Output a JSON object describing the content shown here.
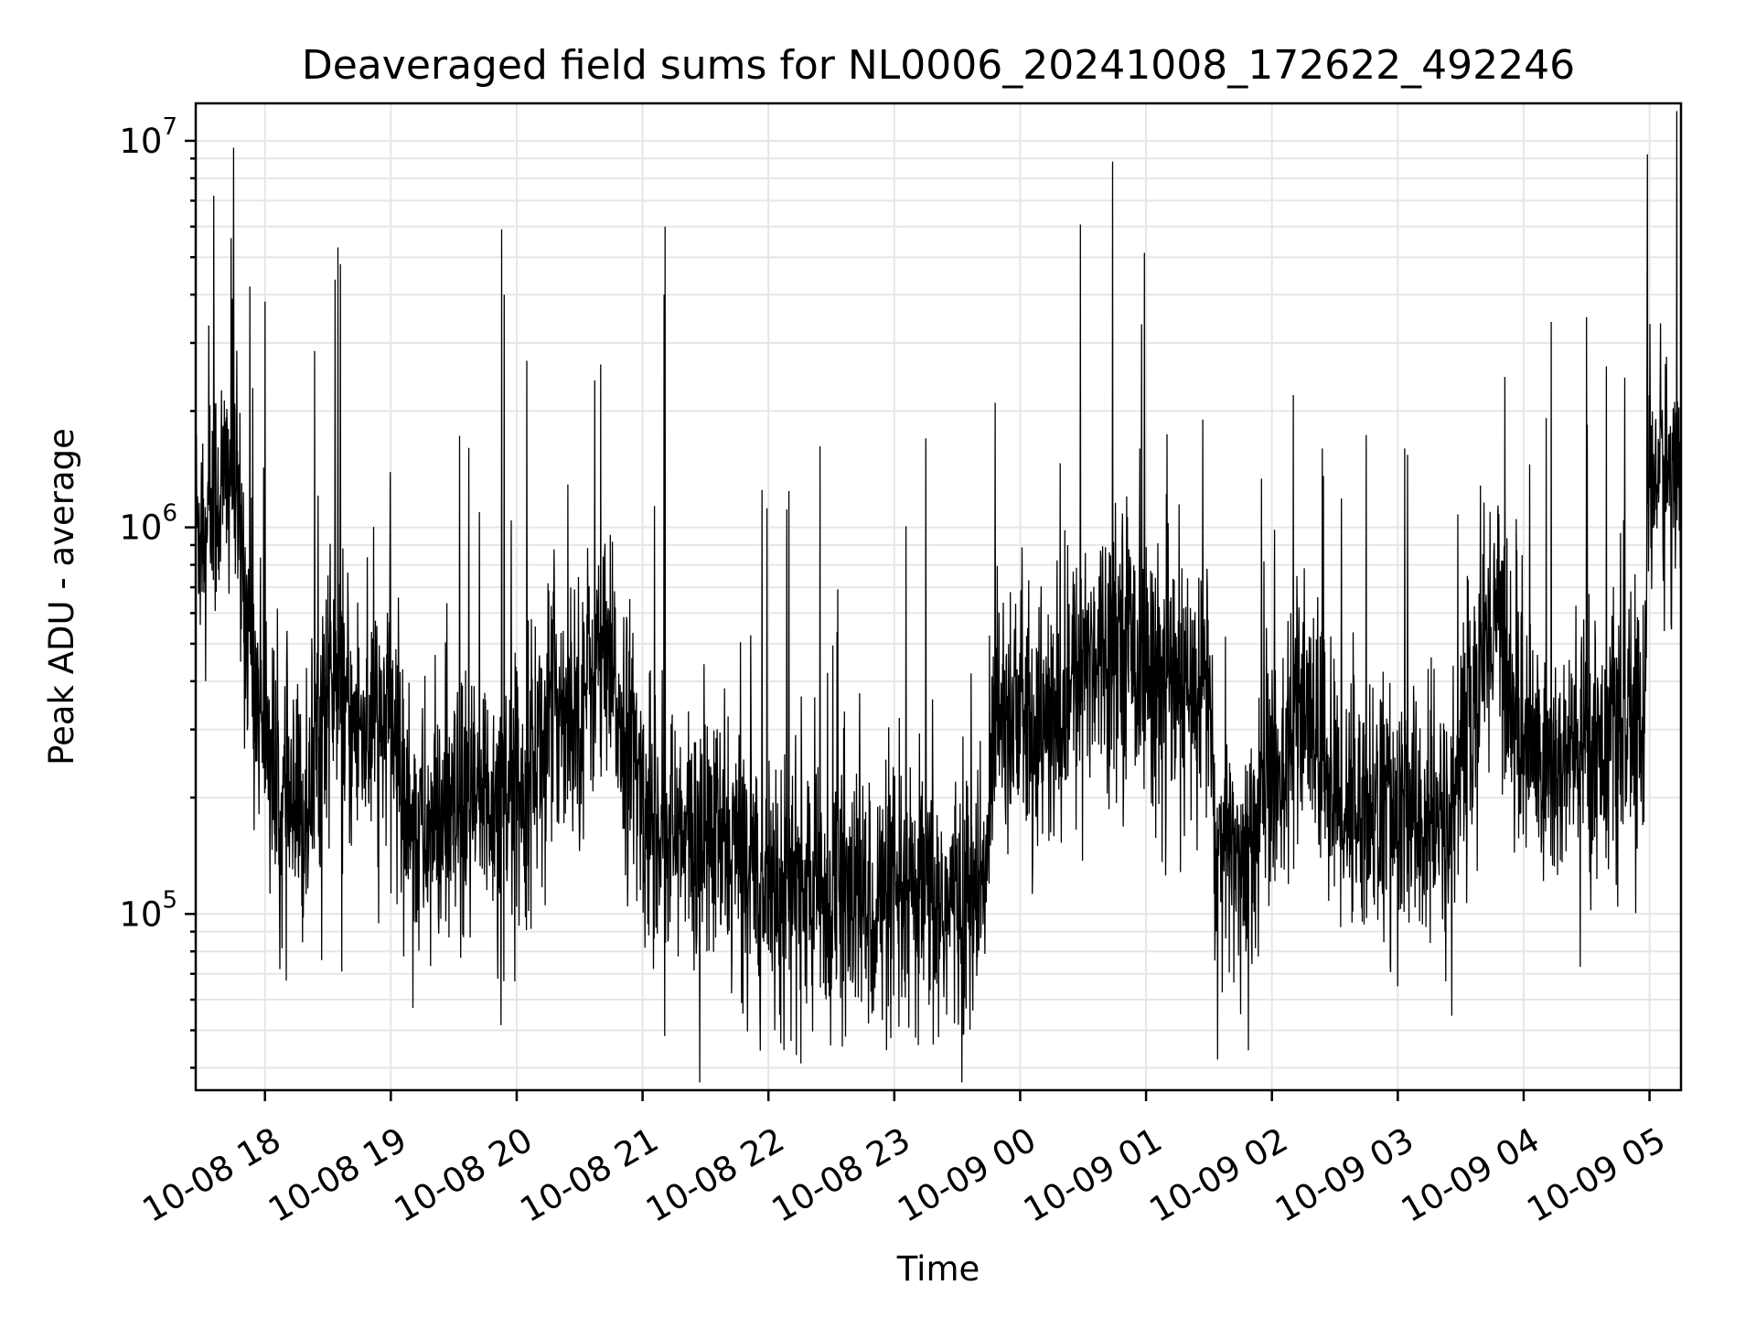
{
  "chart_data": {
    "type": "line",
    "title": "Deaveraged field sums for NL0006_20241008_172622_492246",
    "xlabel": "Time",
    "ylabel": "Peak ADU - average",
    "yscale": "log",
    "ylim": [
      35000,
      12500000
    ],
    "xlim_hours": [
      17.45,
      29.25
    ],
    "grid": true,
    "legend": null,
    "x_ticks": [
      {
        "hour": 18,
        "label": "10-08 18"
      },
      {
        "hour": 19,
        "label": "10-08 19"
      },
      {
        "hour": 20,
        "label": "10-08 20"
      },
      {
        "hour": 21,
        "label": "10-08 21"
      },
      {
        "hour": 22,
        "label": "10-08 22"
      },
      {
        "hour": 23,
        "label": "10-08 23"
      },
      {
        "hour": 24,
        "label": "10-09 00"
      },
      {
        "hour": 25,
        "label": "10-09 01"
      },
      {
        "hour": 26,
        "label": "10-09 02"
      },
      {
        "hour": 27,
        "label": "10-09 03"
      },
      {
        "hour": 28,
        "label": "10-09 04"
      },
      {
        "hour": 29,
        "label": "10-09 05"
      }
    ],
    "y_ticks": [
      {
        "value": 100000,
        "base": "10",
        "exp": "5"
      },
      {
        "value": 1000000,
        "base": "10",
        "exp": "6"
      },
      {
        "value": 10000000,
        "base": "10",
        "exp": "7"
      }
    ],
    "series": [
      {
        "name": "Deaveraged field sum",
        "color": "#000000",
        "x_start_hour": 17.45,
        "x_end_hour": 29.25,
        "baseline": [
          [
            17.45,
            1000000
          ],
          [
            17.75,
            1400000
          ],
          [
            17.9,
            420000
          ],
          [
            18.0,
            330000
          ],
          [
            18.1,
            190000
          ],
          [
            18.3,
            170000
          ],
          [
            18.5,
            420000
          ],
          [
            18.7,
            300000
          ],
          [
            19.0,
            320000
          ],
          [
            19.2,
            160000
          ],
          [
            19.5,
            170000
          ],
          [
            19.8,
            200000
          ],
          [
            20.0,
            210000
          ],
          [
            20.3,
            350000
          ],
          [
            20.5,
            350000
          ],
          [
            20.65,
            480000
          ],
          [
            20.9,
            280000
          ],
          [
            21.0,
            190000
          ],
          [
            21.3,
            150000
          ],
          [
            21.5,
            160000
          ],
          [
            21.8,
            140000
          ],
          [
            22.0,
            125000
          ],
          [
            22.5,
            110000
          ],
          [
            22.9,
            105000
          ],
          [
            23.3,
            105000
          ],
          [
            23.72,
            110000
          ],
          [
            23.8,
            400000
          ],
          [
            24.0,
            320000
          ],
          [
            24.3,
            300000
          ],
          [
            24.5,
            460000
          ],
          [
            24.8,
            560000
          ],
          [
            25.0,
            430000
          ],
          [
            25.3,
            360000
          ],
          [
            25.5,
            420000
          ],
          [
            25.55,
            140000
          ],
          [
            25.8,
            150000
          ],
          [
            26.0,
            230000
          ],
          [
            26.3,
            330000
          ],
          [
            26.5,
            200000
          ],
          [
            26.8,
            190000
          ],
          [
            27.0,
            175000
          ],
          [
            27.4,
            165000
          ],
          [
            27.55,
            300000
          ],
          [
            27.8,
            700000
          ],
          [
            27.9,
            330000
          ],
          [
            28.2,
            230000
          ],
          [
            28.5,
            270000
          ],
          [
            28.8,
            300000
          ],
          [
            28.95,
            300000
          ],
          [
            29.0,
            1400000
          ],
          [
            29.25,
            1400000
          ]
        ],
        "spikes": [
          {
            "hour": 17.75,
            "value": 9600000
          },
          {
            "hour": 17.73,
            "value": 5600000
          },
          {
            "hour": 17.88,
            "value": 4200000
          },
          {
            "hour": 18.58,
            "value": 5300000
          },
          {
            "hour": 18.6,
            "value": 4800000
          },
          {
            "hour": 19.88,
            "value": 5900000
          },
          {
            "hour": 19.9,
            "value": 4000000
          },
          {
            "hour": 20.62,
            "value": 2400000
          },
          {
            "hour": 21.18,
            "value": 6000000
          },
          {
            "hour": 21.17,
            "value": 4000000
          },
          {
            "hour": 21.95,
            "value": 1250000
          },
          {
            "hour": 23.25,
            "value": 1700000
          },
          {
            "hour": 23.8,
            "value": 2100000
          },
          {
            "hour": 24.95,
            "value": 1600000
          },
          {
            "hour": 25.45,
            "value": 1900000
          },
          {
            "hour": 26.17,
            "value": 2200000
          },
          {
            "hour": 26.4,
            "value": 1600000
          },
          {
            "hour": 27.85,
            "value": 2450000
          },
          {
            "hour": 28.22,
            "value": 3400000
          },
          {
            "hour": 28.5,
            "value": 3500000
          },
          {
            "hour": 28.98,
            "value": 3700000
          }
        ],
        "dips": [
          {
            "hour": 18.12,
            "value": 72000
          },
          {
            "hour": 18.45,
            "value": 76000
          },
          {
            "hour": 19.85,
            "value": 68000
          },
          {
            "hour": 22.05,
            "value": 50000
          },
          {
            "hour": 23.35,
            "value": 48000
          },
          {
            "hour": 23.55,
            "value": 49000
          },
          {
            "hour": 25.57,
            "value": 42000
          },
          {
            "hour": 25.75,
            "value": 55000
          },
          {
            "hour": 27.0,
            "value": 65000
          },
          {
            "hour": 28.45,
            "value": 73000
          }
        ]
      }
    ]
  }
}
